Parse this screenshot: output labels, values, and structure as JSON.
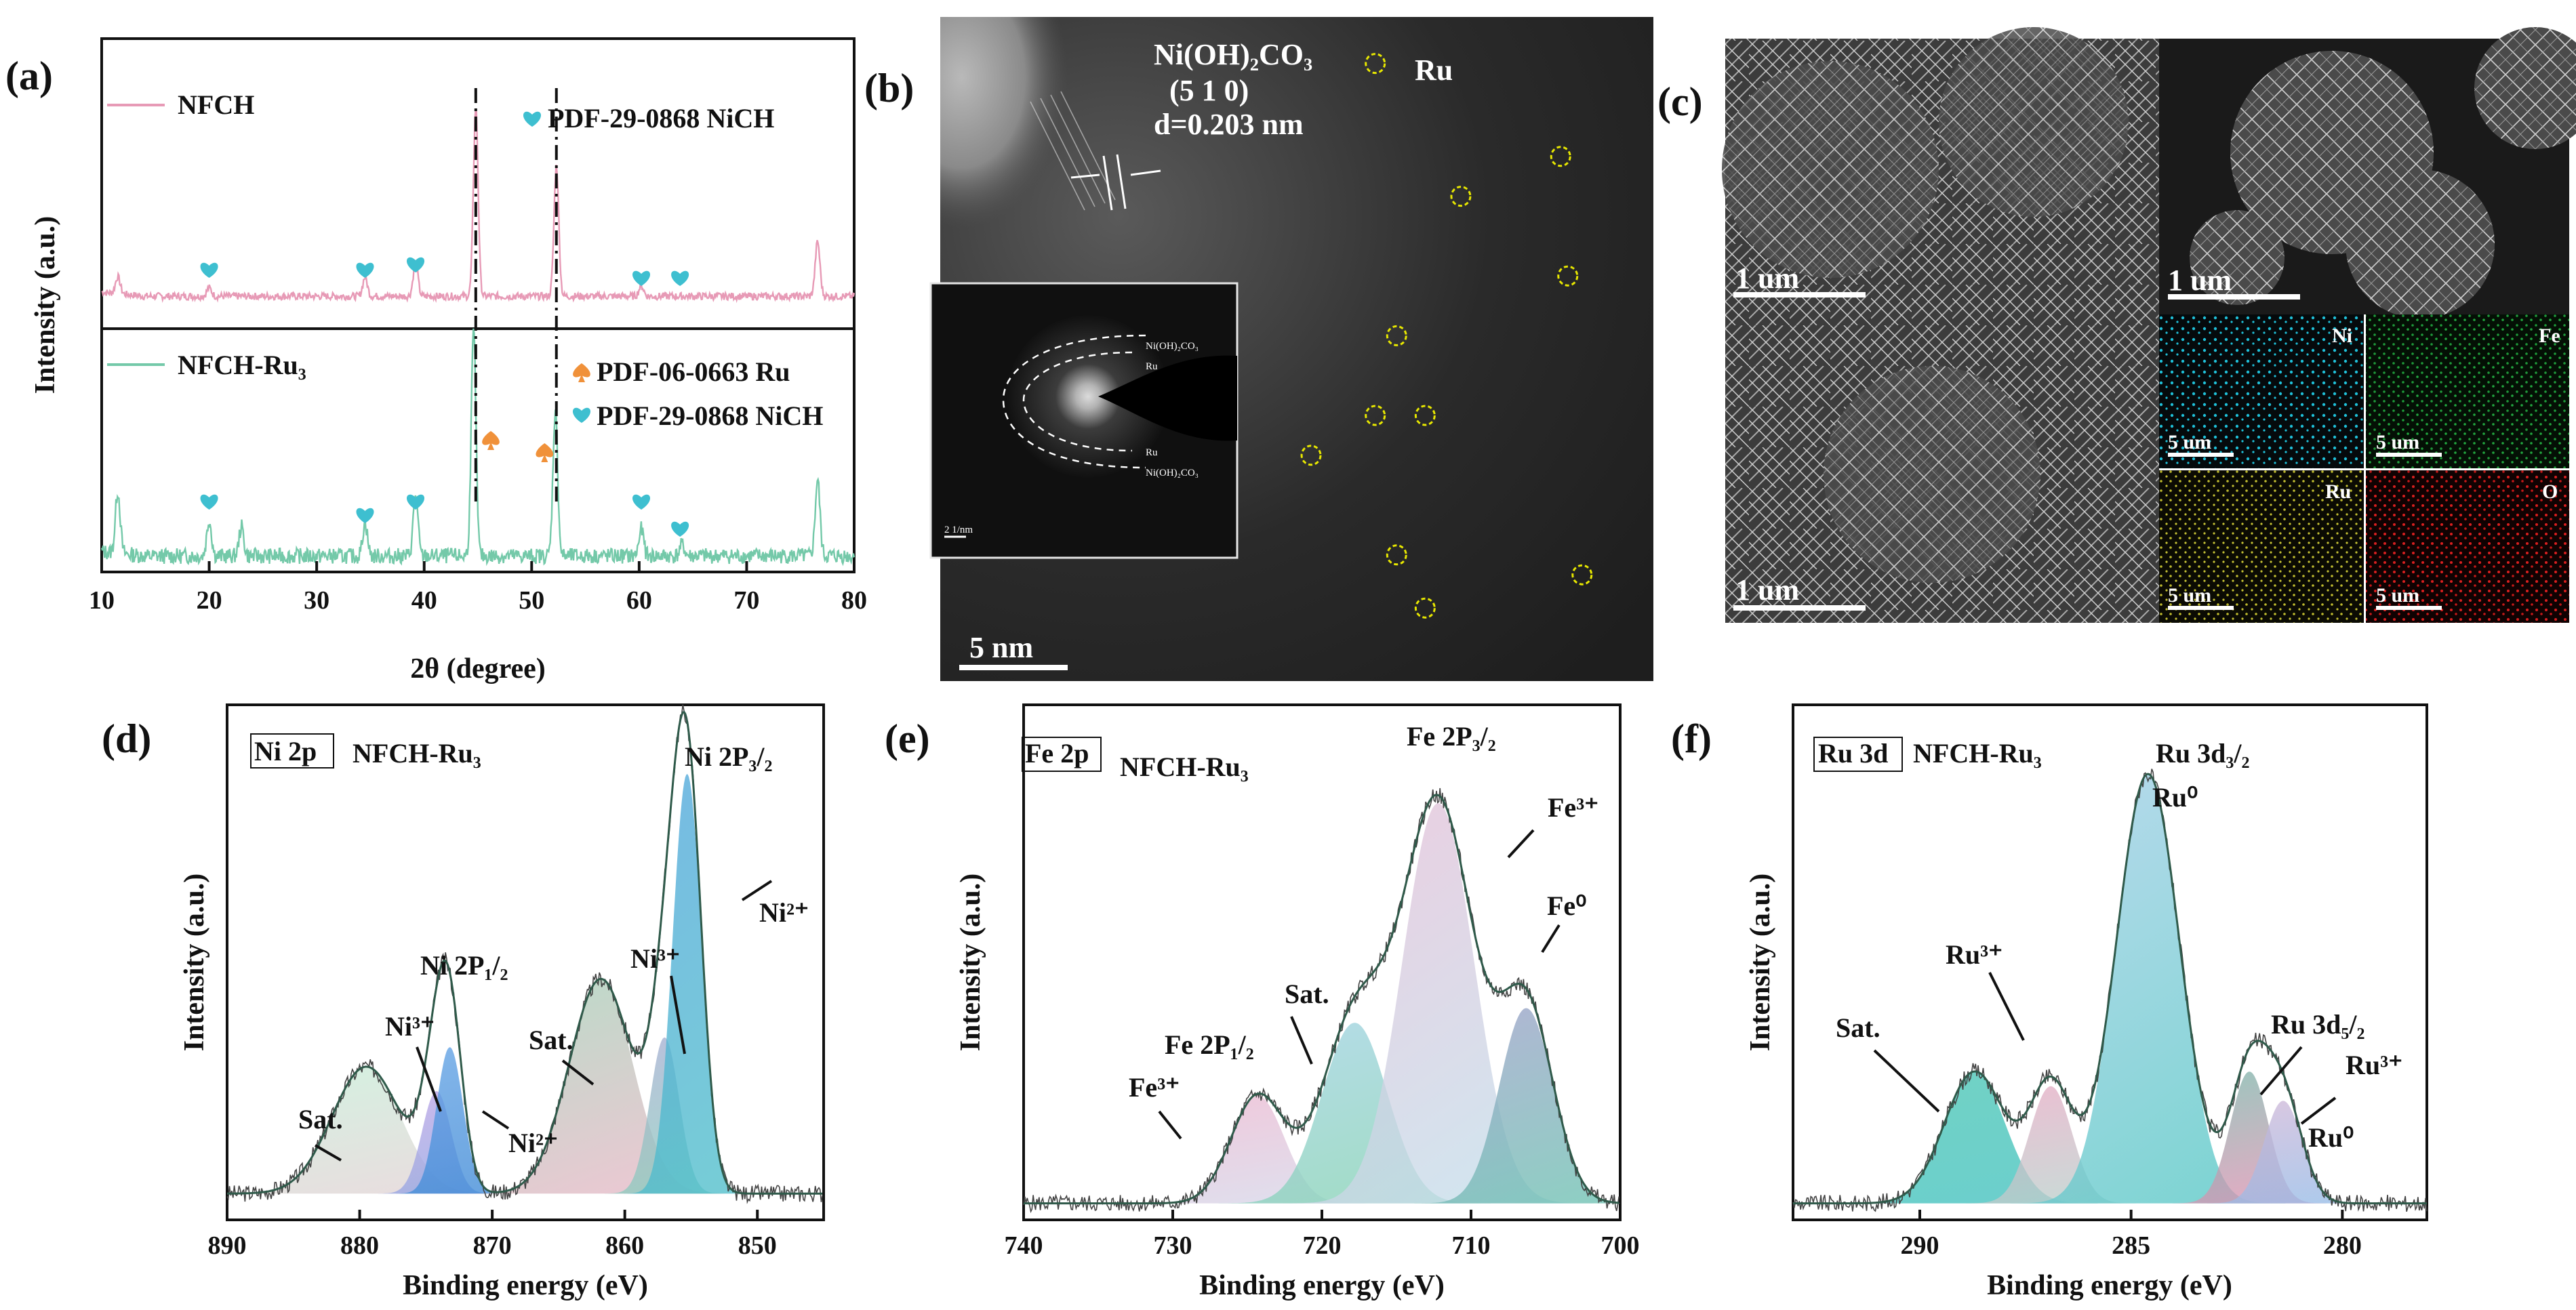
{
  "panels": {
    "a": "(a)",
    "b": "(b)",
    "c": "(c)",
    "d": "(d)",
    "e": "(e)",
    "f": "(f)"
  },
  "colors": {
    "nfch": "#e79ab6",
    "nfchru": "#74c9a9",
    "heart": "#3ebfd0",
    "spade": "#f0913a",
    "dash": "#111111",
    "circle": "#e8e800",
    "envelope": "#2f5a4a"
  },
  "chart_data": [
    {
      "id": "a",
      "type": "line",
      "xlabel": "2θ (degree)",
      "ylabel": "Intensity (a.u.)",
      "xlim": [
        10,
        80
      ],
      "x_ticks": [
        10,
        20,
        30,
        40,
        50,
        60,
        70,
        80
      ],
      "series": [
        {
          "name": "NFCH",
          "color": "#e79ab6",
          "peaks": [
            [
              11.5,
              0.8
            ],
            [
              20,
              0.4
            ],
            [
              34.5,
              0.9
            ],
            [
              39.2,
              1.6
            ],
            [
              44.8,
              9.0
            ],
            [
              52.3,
              6.2
            ],
            [
              60.2,
              0.5
            ],
            [
              76.6,
              2.6
            ]
          ]
        },
        {
          "name": "NFCH-Ru₃",
          "color": "#74c9a9",
          "peaks": [
            [
              11.5,
              2.8
            ],
            [
              20,
              1.6
            ],
            [
              23,
              1.3
            ],
            [
              34.5,
              1.5
            ],
            [
              39.2,
              2.7
            ],
            [
              44.6,
              10.0
            ],
            [
              52.2,
              6.5
            ],
            [
              60.2,
              1.2
            ],
            [
              64,
              0.5
            ],
            [
              76.6,
              3.4
            ]
          ]
        }
      ],
      "annotations": {
        "top_legend": "NFCH",
        "top_ref": "PDF-29-0868 NiCH",
        "bottom_legend": "NFCH-Ru₃",
        "ru_ref": "PDF-06-0663 Ru",
        "bottom_ref": "PDF-29-0868 NiCH"
      },
      "hearts_top": [
        20,
        34.5,
        39.2,
        60.2,
        63.8
      ],
      "hearts_bottom": [
        20,
        34.5,
        39.2,
        60.2,
        63.8
      ],
      "spades": [
        46.2,
        51.2
      ],
      "dash_lines": [
        44.8,
        52.3
      ]
    },
    {
      "id": "d",
      "type": "area",
      "xlabel": "Binding energy (eV)",
      "ylabel": "Intensity (a.u.)",
      "xlim": [
        890,
        845
      ],
      "x_ticks": [
        890,
        880,
        870,
        860,
        850
      ],
      "reversed": true,
      "tag": "Ni 2p",
      "sample": "NFCH-Ru₃",
      "components": [
        {
          "center": 879.5,
          "height": 0.26,
          "width": 2.6,
          "colors": [
            "#c6efd8",
            "#f0c6d4"
          ]
        },
        {
          "center": 874.2,
          "height": 0.21,
          "width": 1.1,
          "colors": [
            "#c5a3e6",
            "#7fa8e2"
          ]
        },
        {
          "center": 873.2,
          "height": 0.3,
          "width": 1.0,
          "colors": [
            "#6aa8e8",
            "#2f7fd0"
          ]
        },
        {
          "center": 861.8,
          "height": 0.44,
          "width": 2.4,
          "colors": [
            "#8fd9b3",
            "#f4b3c9"
          ]
        },
        {
          "center": 857.0,
          "height": 0.32,
          "width": 1.1,
          "colors": [
            "#b79be0",
            "#86d4b8"
          ]
        },
        {
          "center": 855.3,
          "height": 0.86,
          "width": 1.1,
          "colors": [
            "#4f98e6",
            "#4fc2c8"
          ]
        }
      ],
      "baseline": 0.04,
      "labels": {
        "ni2p32": "Ni 2P₃/₂",
        "ni2p12": "Ni 2P₁/₂",
        "sat1": "Sat.",
        "sat2": "Sat.",
        "ni3a": "Ni³⁺",
        "ni2a": "Ni²⁺",
        "ni3b": "Ni³⁺",
        "ni2b": "Ni²⁺"
      }
    },
    {
      "id": "e",
      "type": "area",
      "xlabel": "Binding energy (eV)",
      "ylabel": "Intensity (a.u.)",
      "xlim": [
        740,
        700
      ],
      "x_ticks": [
        740,
        730,
        720,
        710,
        700
      ],
      "reversed": true,
      "tag": "Fe 2p",
      "sample": "NFCH-Ru₃",
      "components": [
        {
          "center": 724.3,
          "height": 0.22,
          "width": 1.8,
          "colors": [
            "#f0b3cc",
            "#cde3f3"
          ]
        },
        {
          "center": 717.8,
          "height": 0.37,
          "width": 2.2,
          "colors": [
            "#a8d2f0",
            "#7fd3a8"
          ]
        },
        {
          "center": 712.2,
          "height": 0.82,
          "width": 2.4,
          "colors": [
            "#f2b4d0",
            "#bfe3ee"
          ]
        },
        {
          "center": 706.3,
          "height": 0.4,
          "width": 1.8,
          "colors": [
            "#b58ed4",
            "#6cc2b1"
          ]
        }
      ],
      "baseline": 0.02,
      "labels": {
        "fe2p32": "Fe 2P₃/₂",
        "fe3a": "Fe³⁺",
        "fe0": "Fe⁰",
        "sat": "Sat.",
        "fe2p12": "Fe 2P₁/₂",
        "fe3b": "Fe³⁺"
      }
    },
    {
      "id": "f",
      "type": "area",
      "xlabel": "Binding energy (eV)",
      "ylabel": "Intensity (a.u.)",
      "xlim": [
        293,
        278
      ],
      "x_ticks": [
        290,
        285,
        280
      ],
      "reversed": true,
      "tag": "Ru 3d",
      "sample": "NFCH-Ru₃",
      "components": [
        {
          "center": 288.7,
          "height": 0.27,
          "width": 0.72,
          "colors": [
            "#4ac6b2",
            "#3ebfc4"
          ]
        },
        {
          "center": 286.9,
          "height": 0.24,
          "width": 0.5,
          "colors": [
            "#f2a3c3",
            "#a6e0cf"
          ]
        },
        {
          "center": 284.6,
          "height": 0.88,
          "width": 0.75,
          "colors": [
            "#bcd2f2",
            "#45c6bd"
          ]
        },
        {
          "center": 282.2,
          "height": 0.27,
          "width": 0.45,
          "colors": [
            "#4ac9a7",
            "#f08cb4"
          ]
        },
        {
          "center": 281.4,
          "height": 0.21,
          "width": 0.45,
          "colors": [
            "#f3b6d0",
            "#8fbbe8"
          ]
        }
      ],
      "baseline": 0.02,
      "labels": {
        "ru3d32": "Ru 3d₃/₂",
        "ru0a": "Ru⁰",
        "ru3a": "Ru³⁺",
        "sat": "Sat.",
        "ru3d52": "Ru 3d₅/₂",
        "ru3b": "Ru³⁺",
        "ru0b": "Ru⁰"
      }
    }
  ],
  "b": {
    "phase": "Ni(OH)₂CO₃",
    "plane": "(5 1 0)",
    "d": "d=0.203 nm",
    "ru": "Ru",
    "scale": "5 nm",
    "saed_scale": "2 1/nm",
    "saed_labels": [
      "Ni(OH)₂CO₃",
      "Ru",
      "Ru",
      "Ni(OH)₂CO₃"
    ],
    "circles": [
      [
        0.61,
        0.07
      ],
      [
        0.87,
        0.21
      ],
      [
        0.73,
        0.27
      ],
      [
        0.88,
        0.39
      ],
      [
        0.64,
        0.48
      ],
      [
        0.61,
        0.6
      ],
      [
        0.68,
        0.6
      ],
      [
        0.52,
        0.66
      ],
      [
        0.64,
        0.81
      ],
      [
        0.9,
        0.84
      ],
      [
        0.68,
        0.89
      ]
    ]
  },
  "c": {
    "scale1": "1 um",
    "scale2": "1 um",
    "scale3": "1 um",
    "maps": [
      {
        "el": "Ni",
        "scale": "5 um",
        "color": "#1fc0d8"
      },
      {
        "el": "Fe",
        "scale": "5 um",
        "color": "#1f9a3a"
      },
      {
        "el": "Ru",
        "scale": "5 um",
        "color": "#c6c234"
      },
      {
        "el": "O",
        "scale": "5 um",
        "color": "#d81f1f"
      }
    ]
  }
}
